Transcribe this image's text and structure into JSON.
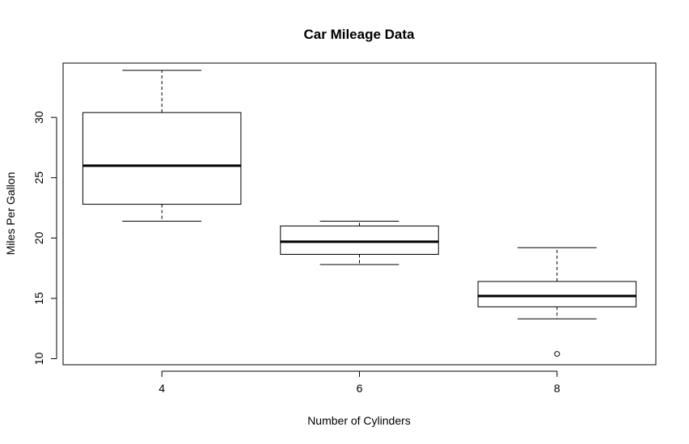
{
  "chart_data": {
    "type": "box",
    "title": "Car Mileage Data",
    "xlabel": "Number of Cylinders",
    "ylabel": "Miles Per Gallon",
    "categories": [
      "4",
      "6",
      "8"
    ],
    "boxes": [
      {
        "category": "4",
        "whisker_low": 21.4,
        "q1": 22.8,
        "median": 26.0,
        "q3": 30.4,
        "whisker_high": 33.9,
        "outliers": []
      },
      {
        "category": "6",
        "whisker_low": 17.8,
        "q1": 18.65,
        "median": 19.7,
        "q3": 21.0,
        "whisker_high": 21.4,
        "outliers": []
      },
      {
        "category": "8",
        "whisker_low": 13.3,
        "q1": 14.3,
        "median": 15.2,
        "q3": 16.4,
        "whisker_high": 19.2,
        "outliers": [
          10.4
        ]
      }
    ],
    "yticks": [
      10,
      15,
      20,
      25,
      30
    ],
    "xlim": [
      0.5,
      3.5
    ],
    "ylim": [
      9.5,
      34.5
    ],
    "grid": false,
    "legend": "none"
  }
}
